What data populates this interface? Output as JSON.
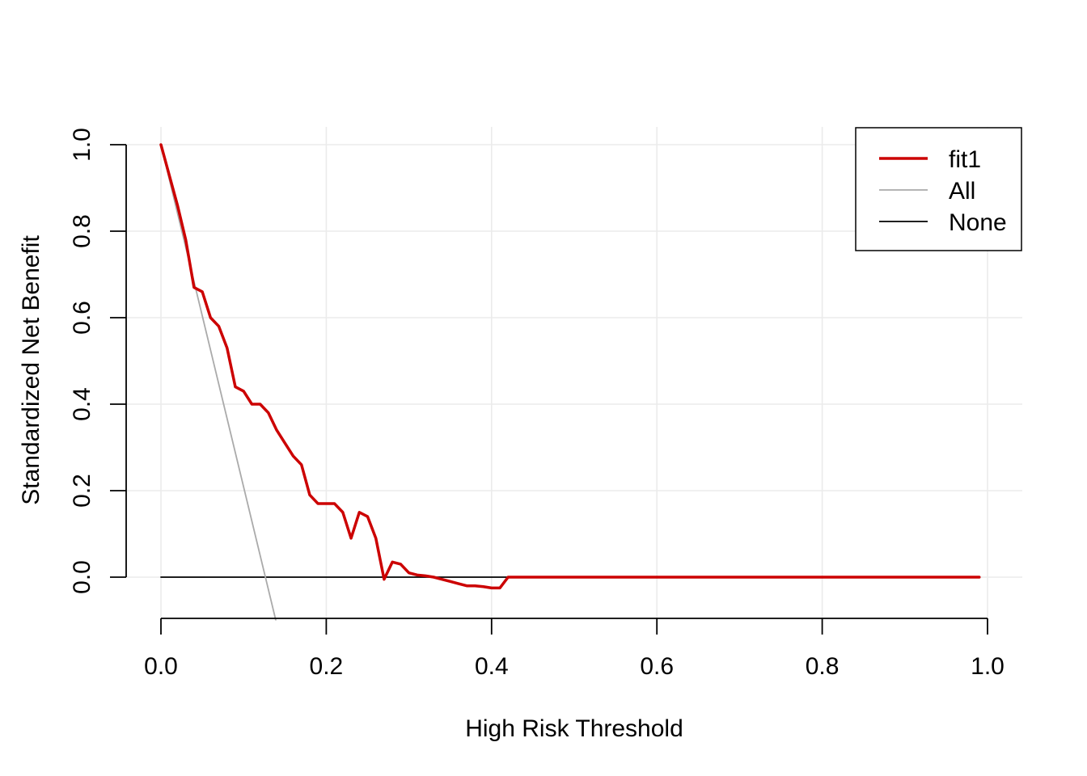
{
  "chart_data": {
    "type": "line",
    "title": "",
    "xlabel": "High Risk Threshold",
    "ylabel": "Standardized Net Benefit",
    "xlim": [
      0,
      1
    ],
    "ylim": [
      -0.1,
      1.0
    ],
    "xticks": [
      0,
      0.2,
      0.4,
      0.6,
      0.8,
      1.0
    ],
    "xtick_labels": [
      "0.0",
      "0.2",
      "0.4",
      "0.6",
      "0.8",
      "1.0"
    ],
    "yticks": [
      0,
      0.2,
      0.4,
      0.6,
      0.8,
      1.0
    ],
    "ytick_labels": [
      "0.0",
      "0.2",
      "0.4",
      "0.6",
      "0.8",
      "1.0"
    ],
    "grid": true,
    "legend_position": "top-right",
    "series": [
      {
        "name": "fit1",
        "color": "#cc0000",
        "x": [
          0.0,
          0.01,
          0.02,
          0.03,
          0.04,
          0.05,
          0.06,
          0.07,
          0.08,
          0.09,
          0.1,
          0.11,
          0.12,
          0.13,
          0.14,
          0.15,
          0.16,
          0.17,
          0.18,
          0.19,
          0.2,
          0.21,
          0.22,
          0.23,
          0.24,
          0.25,
          0.26,
          0.27,
          0.28,
          0.29,
          0.3,
          0.31,
          0.32,
          0.33,
          0.34,
          0.35,
          0.36,
          0.37,
          0.38,
          0.39,
          0.4,
          0.41,
          0.42,
          0.43,
          0.5,
          0.6,
          0.7,
          0.8,
          0.9,
          0.99
        ],
        "y": [
          1.0,
          0.93,
          0.86,
          0.78,
          0.67,
          0.66,
          0.6,
          0.58,
          0.53,
          0.44,
          0.43,
          0.4,
          0.4,
          0.38,
          0.34,
          0.31,
          0.28,
          0.26,
          0.19,
          0.17,
          0.17,
          0.17,
          0.15,
          0.09,
          0.15,
          0.14,
          0.09,
          -0.005,
          0.035,
          0.03,
          0.01,
          0.005,
          0.003,
          0.0,
          -0.005,
          -0.01,
          -0.015,
          -0.02,
          -0.02,
          -0.022,
          -0.025,
          -0.025,
          0.0,
          0.0,
          0.0,
          0.0,
          0.0,
          0.0,
          0.0,
          0.0
        ]
      },
      {
        "name": "All",
        "color": "#aaaaaa",
        "x": [
          0.0,
          0.139
        ],
        "y": [
          1.0,
          -0.1
        ]
      },
      {
        "name": "None",
        "color": "#000000",
        "x": [
          0.0,
          0.99
        ],
        "y": [
          0.0,
          0.0
        ]
      }
    ]
  }
}
